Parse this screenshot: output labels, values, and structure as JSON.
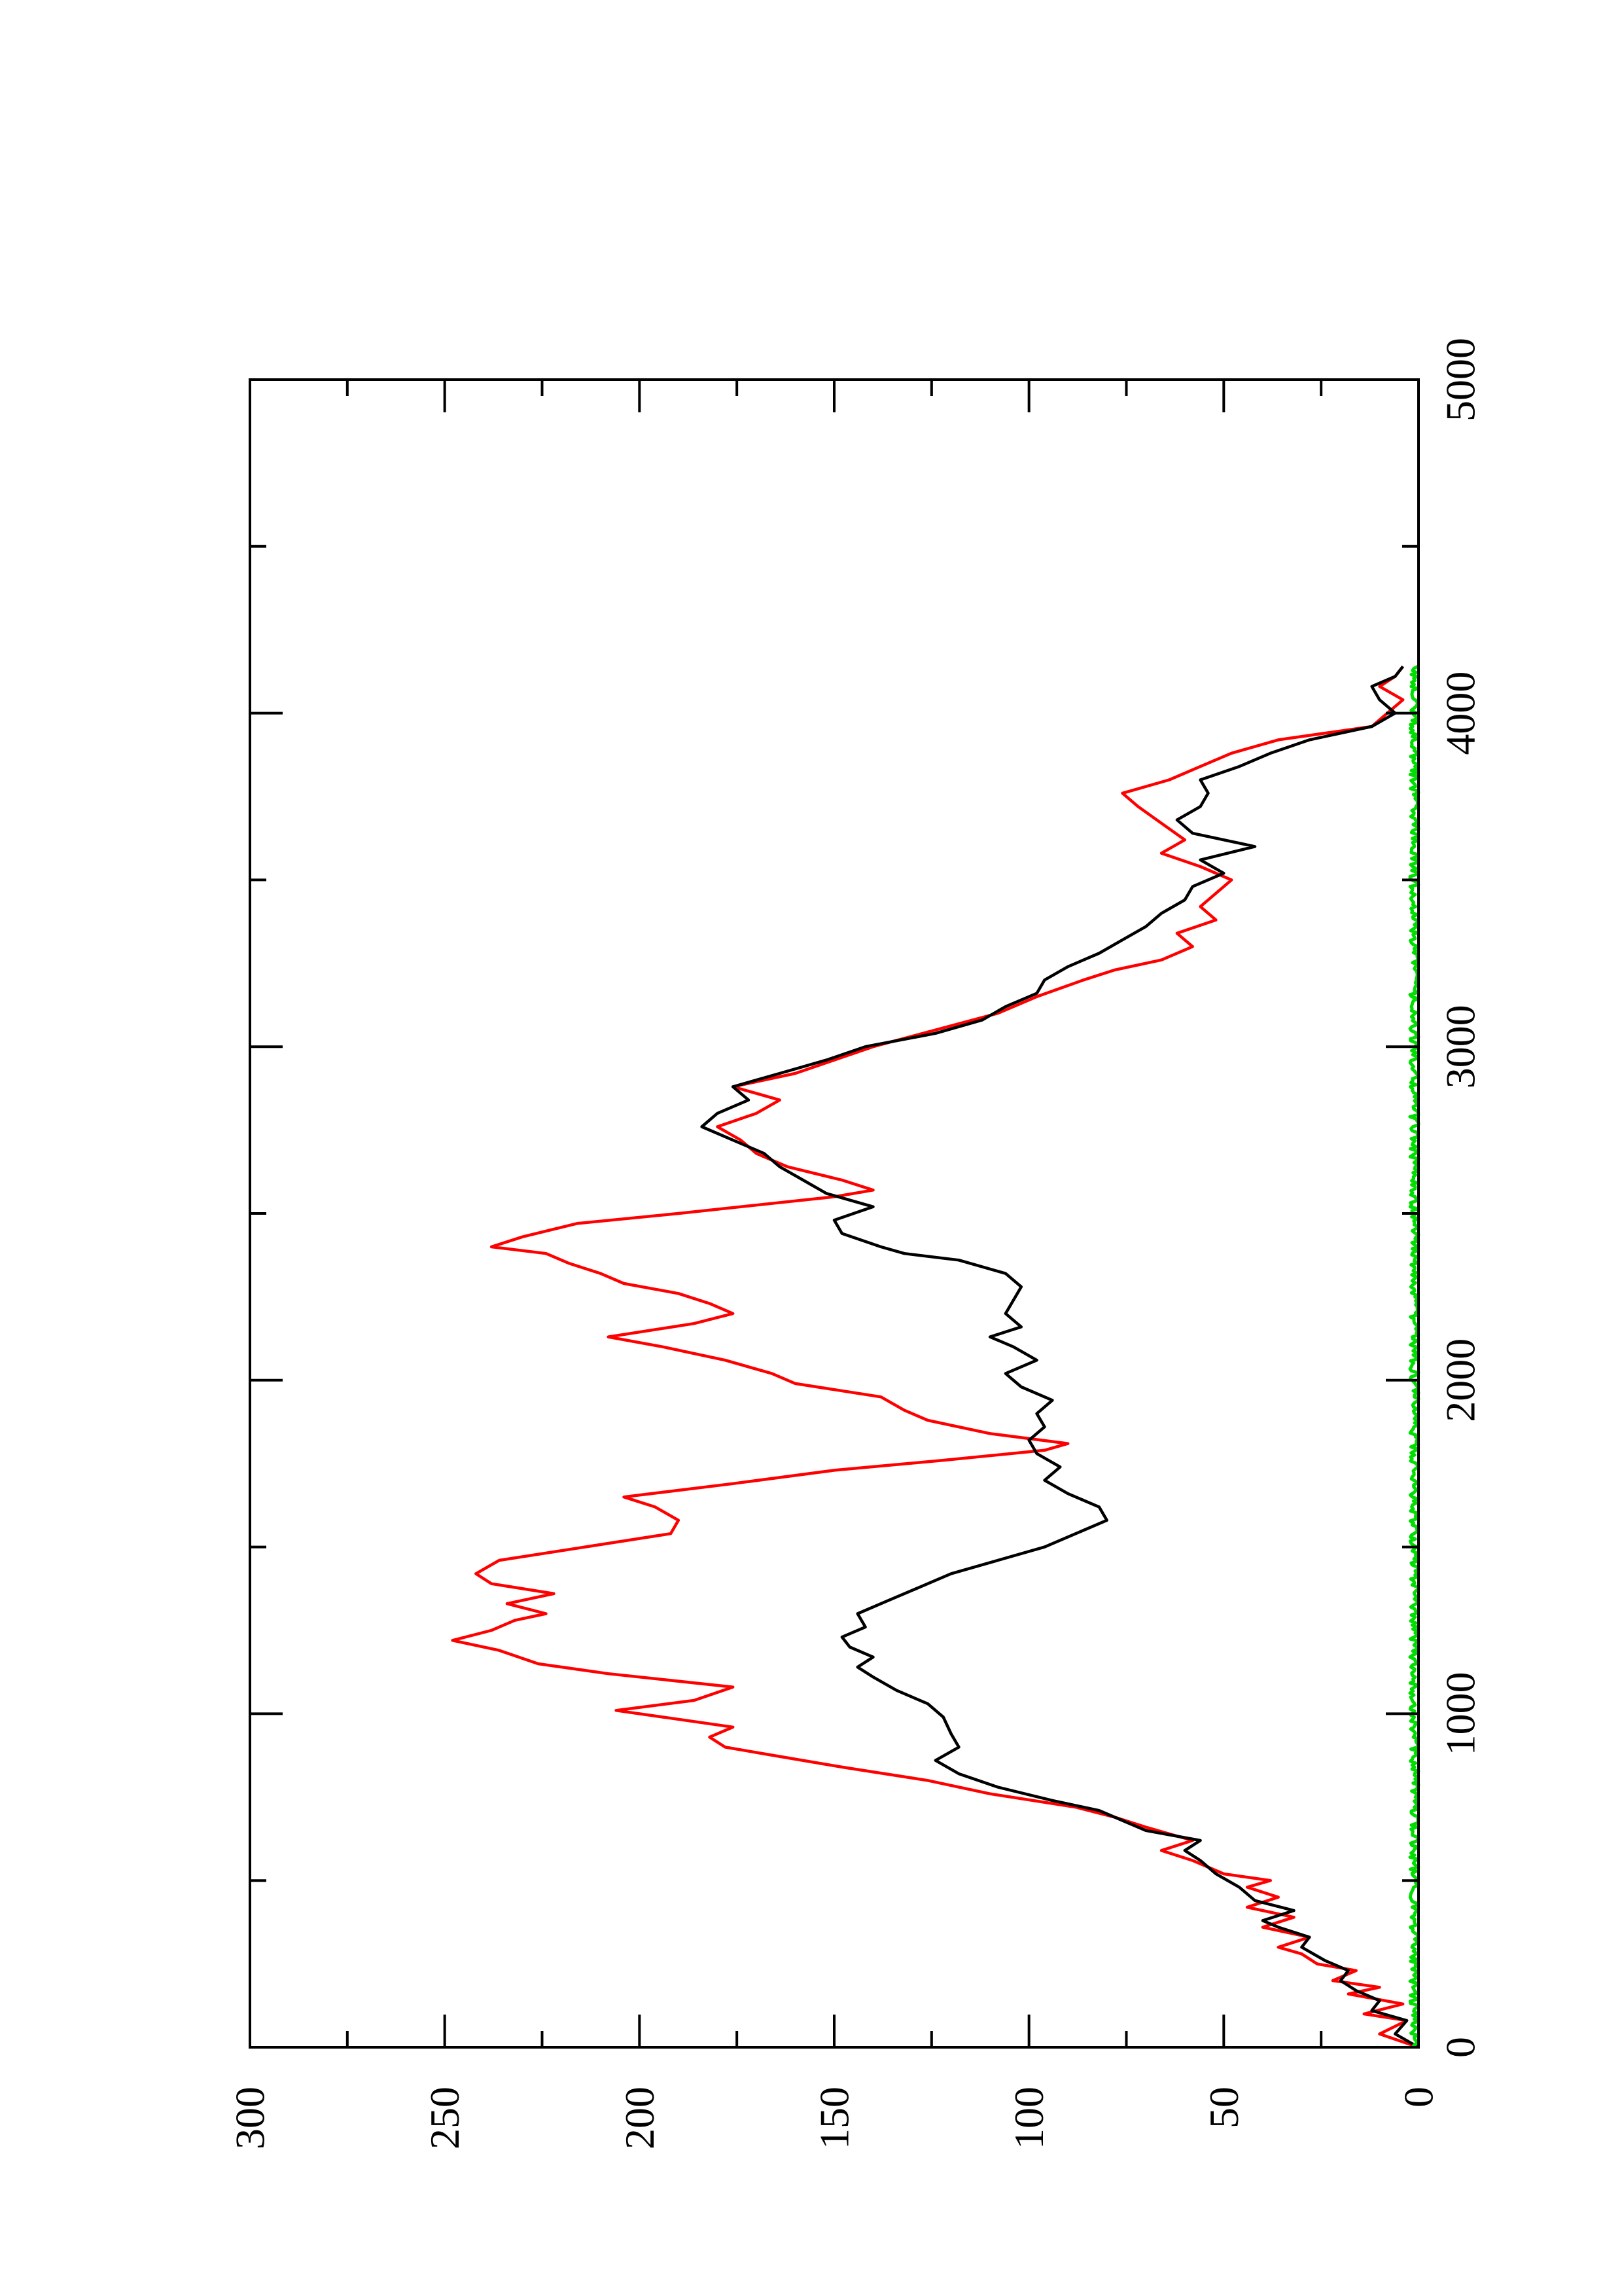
{
  "chart_data": {
    "type": "line",
    "orientation": "rotated 90 degrees counter-clockwise (x axis runs bottom-to-top, y axis runs right-to-left)",
    "title": "",
    "xlabel": "",
    "ylabel": "",
    "xlim": [
      0,
      5000
    ],
    "ylim": [
      0,
      300
    ],
    "x_ticks": [
      0,
      1000,
      2000,
      3000,
      4000,
      5000
    ],
    "x_tick_labels": [
      "0",
      "1000",
      "2000",
      "3000",
      "4000",
      "5000"
    ],
    "y_ticks": [
      0,
      50,
      100,
      150,
      200,
      250,
      300
    ],
    "y_tick_labels": [
      "0",
      "50",
      "100",
      "150",
      "200",
      "250",
      "300"
    ],
    "grid": false,
    "legend": "none",
    "series": [
      {
        "color": "#ff0000",
        "points": [
          [
            0,
            0
          ],
          [
            40,
            10
          ],
          [
            80,
            3
          ],
          [
            100,
            14
          ],
          [
            130,
            4
          ],
          [
            160,
            18
          ],
          [
            180,
            10
          ],
          [
            200,
            22
          ],
          [
            230,
            16
          ],
          [
            250,
            26
          ],
          [
            280,
            30
          ],
          [
            300,
            36
          ],
          [
            330,
            28
          ],
          [
            360,
            40
          ],
          [
            390,
            32
          ],
          [
            420,
            44
          ],
          [
            450,
            36
          ],
          [
            480,
            44
          ],
          [
            500,
            38
          ],
          [
            520,
            50
          ],
          [
            560,
            58
          ],
          [
            590,
            66
          ],
          [
            620,
            58
          ],
          [
            660,
            70
          ],
          [
            690,
            78
          ],
          [
            720,
            88
          ],
          [
            760,
            110
          ],
          [
            800,
            126
          ],
          [
            840,
            148
          ],
          [
            880,
            168
          ],
          [
            900,
            178
          ],
          [
            930,
            182
          ],
          [
            960,
            176
          ],
          [
            990,
            194
          ],
          [
            1010,
            206
          ],
          [
            1040,
            186
          ],
          [
            1080,
            176
          ],
          [
            1120,
            208
          ],
          [
            1150,
            226
          ],
          [
            1190,
            236
          ],
          [
            1220,
            248
          ],
          [
            1250,
            238
          ],
          [
            1280,
            232
          ],
          [
            1300,
            224
          ],
          [
            1330,
            234
          ],
          [
            1360,
            222
          ],
          [
            1390,
            238
          ],
          [
            1420,
            242
          ],
          [
            1460,
            236
          ],
          [
            1500,
            214
          ],
          [
            1540,
            192
          ],
          [
            1580,
            190
          ],
          [
            1620,
            196
          ],
          [
            1650,
            204
          ],
          [
            1690,
            176
          ],
          [
            1730,
            150
          ],
          [
            1760,
            122
          ],
          [
            1790,
            96
          ],
          [
            1810,
            90
          ],
          [
            1840,
            110
          ],
          [
            1880,
            126
          ],
          [
            1910,
            132
          ],
          [
            1950,
            138
          ],
          [
            1990,
            160
          ],
          [
            2020,
            166
          ],
          [
            2060,
            178
          ],
          [
            2100,
            194
          ],
          [
            2130,
            208
          ],
          [
            2170,
            186
          ],
          [
            2200,
            176
          ],
          [
            2230,
            182
          ],
          [
            2260,
            190
          ],
          [
            2290,
            204
          ],
          [
            2320,
            210
          ],
          [
            2350,
            218
          ],
          [
            2380,
            224
          ],
          [
            2400,
            238
          ],
          [
            2430,
            230
          ],
          [
            2470,
            216
          ],
          [
            2500,
            190
          ],
          [
            2530,
            166
          ],
          [
            2550,
            150
          ],
          [
            2570,
            140
          ],
          [
            2600,
            148
          ],
          [
            2640,
            162
          ],
          [
            2680,
            170
          ],
          [
            2720,
            174
          ],
          [
            2760,
            180
          ],
          [
            2800,
            170
          ],
          [
            2840,
            164
          ],
          [
            2880,
            176
          ],
          [
            2920,
            160
          ],
          [
            2960,
            150
          ],
          [
            3000,
            140
          ],
          [
            3050,
            124
          ],
          [
            3100,
            108
          ],
          [
            3150,
            98
          ],
          [
            3200,
            86
          ],
          [
            3230,
            78
          ],
          [
            3260,
            66
          ],
          [
            3300,
            58
          ],
          [
            3340,
            62
          ],
          [
            3380,
            52
          ],
          [
            3420,
            56
          ],
          [
            3460,
            52
          ],
          [
            3500,
            48
          ],
          [
            3540,
            56
          ],
          [
            3580,
            66
          ],
          [
            3620,
            60
          ],
          [
            3670,
            66
          ],
          [
            3720,
            72
          ],
          [
            3760,
            76
          ],
          [
            3800,
            64
          ],
          [
            3840,
            56
          ],
          [
            3880,
            48
          ],
          [
            3920,
            36
          ],
          [
            3960,
            12
          ],
          [
            4000,
            8
          ],
          [
            4040,
            4
          ],
          [
            4080,
            10
          ],
          [
            4110,
            6
          ],
          [
            4140,
            4
          ]
        ]
      },
      {
        "color": "#000000",
        "points": [
          [
            0,
            0
          ],
          [
            40,
            6
          ],
          [
            80,
            3
          ],
          [
            110,
            12
          ],
          [
            140,
            10
          ],
          [
            170,
            16
          ],
          [
            200,
            20
          ],
          [
            230,
            18
          ],
          [
            260,
            24
          ],
          [
            300,
            30
          ],
          [
            330,
            28
          ],
          [
            360,
            36
          ],
          [
            380,
            40
          ],
          [
            410,
            32
          ],
          [
            440,
            42
          ],
          [
            480,
            46
          ],
          [
            520,
            52
          ],
          [
            560,
            56
          ],
          [
            590,
            60
          ],
          [
            620,
            56
          ],
          [
            650,
            70
          ],
          [
            680,
            76
          ],
          [
            710,
            82
          ],
          [
            740,
            94
          ],
          [
            780,
            108
          ],
          [
            820,
            118
          ],
          [
            860,
            124
          ],
          [
            900,
            118
          ],
          [
            940,
            120
          ],
          [
            990,
            122
          ],
          [
            1030,
            126
          ],
          [
            1070,
            134
          ],
          [
            1110,
            140
          ],
          [
            1140,
            144
          ],
          [
            1170,
            140
          ],
          [
            1200,
            146
          ],
          [
            1230,
            148
          ],
          [
            1260,
            142
          ],
          [
            1300,
            144
          ],
          [
            1340,
            136
          ],
          [
            1380,
            128
          ],
          [
            1420,
            120
          ],
          [
            1460,
            108
          ],
          [
            1500,
            96
          ],
          [
            1540,
            88
          ],
          [
            1580,
            80
          ],
          [
            1620,
            82
          ],
          [
            1660,
            90
          ],
          [
            1700,
            96
          ],
          [
            1740,
            92
          ],
          [
            1780,
            98
          ],
          [
            1820,
            100
          ],
          [
            1860,
            96
          ],
          [
            1900,
            98
          ],
          [
            1940,
            94
          ],
          [
            1980,
            102
          ],
          [
            2020,
            106
          ],
          [
            2060,
            98
          ],
          [
            2100,
            104
          ],
          [
            2130,
            110
          ],
          [
            2160,
            102
          ],
          [
            2200,
            106
          ],
          [
            2240,
            104
          ],
          [
            2280,
            102
          ],
          [
            2320,
            106
          ],
          [
            2360,
            118
          ],
          [
            2380,
            132
          ],
          [
            2400,
            138
          ],
          [
            2440,
            148
          ],
          [
            2480,
            150
          ],
          [
            2520,
            140
          ],
          [
            2560,
            152
          ],
          [
            2600,
            158
          ],
          [
            2640,
            164
          ],
          [
            2680,
            168
          ],
          [
            2720,
            176
          ],
          [
            2760,
            184
          ],
          [
            2800,
            180
          ],
          [
            2840,
            172
          ],
          [
            2880,
            176
          ],
          [
            2920,
            164
          ],
          [
            2960,
            152
          ],
          [
            3000,
            142
          ],
          [
            3040,
            124
          ],
          [
            3080,
            112
          ],
          [
            3120,
            106
          ],
          [
            3160,
            98
          ],
          [
            3200,
            96
          ],
          [
            3240,
            90
          ],
          [
            3280,
            82
          ],
          [
            3320,
            76
          ],
          [
            3360,
            70
          ],
          [
            3400,
            66
          ],
          [
            3440,
            60
          ],
          [
            3480,
            58
          ],
          [
            3520,
            50
          ],
          [
            3560,
            56
          ],
          [
            3600,
            42
          ],
          [
            3640,
            58
          ],
          [
            3680,
            62
          ],
          [
            3720,
            56
          ],
          [
            3760,
            54
          ],
          [
            3800,
            56
          ],
          [
            3840,
            46
          ],
          [
            3880,
            38
          ],
          [
            3920,
            28
          ],
          [
            3960,
            12
          ],
          [
            4000,
            6
          ],
          [
            4040,
            10
          ],
          [
            4080,
            12
          ],
          [
            4110,
            6
          ],
          [
            4140,
            4
          ]
        ]
      },
      {
        "color": "#00dd00",
        "points": [
          [
            0,
            0
          ],
          [
            4140,
            0
          ]
        ]
      }
    ]
  }
}
